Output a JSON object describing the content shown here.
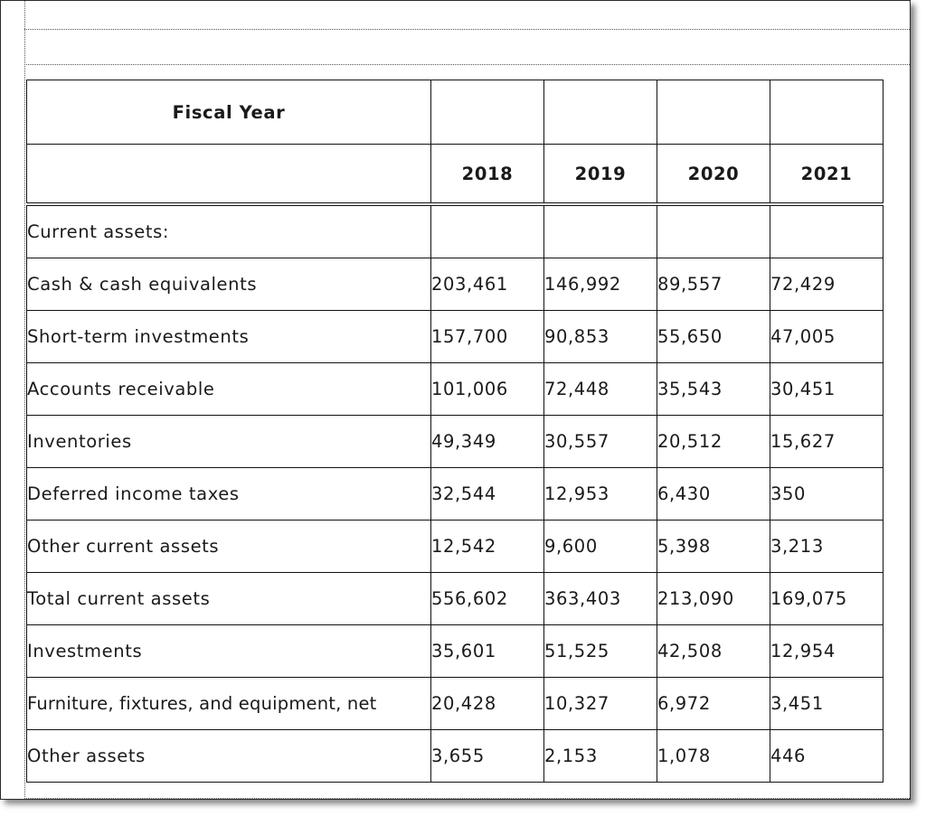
{
  "table": {
    "header_title": "Fiscal Year",
    "years": [
      "2018",
      "2019",
      "2020",
      "2021"
    ],
    "section_label": "Current assets:",
    "rows": [
      {
        "label": "Cash & cash equivalents",
        "values": [
          "203,461",
          "146,992",
          "89,557",
          "72,429"
        ]
      },
      {
        "label": "Short-term investments",
        "values": [
          "157,700",
          "90,853",
          "55,650",
          "47,005"
        ]
      },
      {
        "label": "Accounts receivable",
        "values": [
          "101,006",
          "72,448",
          "35,543",
          "30,451"
        ]
      },
      {
        "label": "Inventories",
        "values": [
          "49,349",
          "30,557",
          "20,512",
          "15,627"
        ]
      },
      {
        "label": "Deferred income taxes",
        "values": [
          "32,544",
          "12,953",
          "6,430",
          "350"
        ]
      },
      {
        "label": "Other current assets",
        "values": [
          "12,542",
          "9,600",
          "5,398",
          "3,213"
        ]
      },
      {
        "label": "Total current assets",
        "values": [
          "556,602",
          "363,403",
          "213,090",
          "169,075"
        ]
      },
      {
        "label": "Investments",
        "values": [
          "35,601",
          "51,525",
          "42,508",
          "12,954"
        ]
      },
      {
        "label": "Furniture, fixtures, and equipment, net",
        "values": [
          "20,428",
          "10,327",
          "6,972",
          "3,451"
        ]
      },
      {
        "label": "Other assets",
        "values": [
          "3,655",
          "2,153",
          "1,078",
          "446"
        ]
      }
    ]
  }
}
